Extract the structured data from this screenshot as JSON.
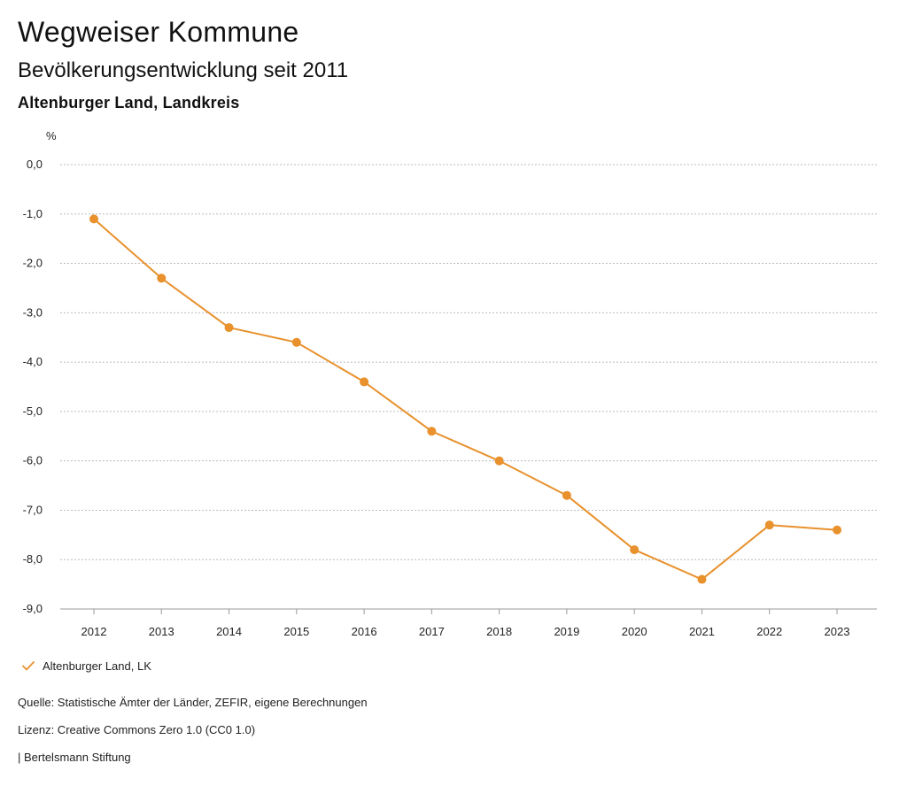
{
  "header": {
    "title": "Wegweiser Kommune",
    "subtitle": "Bevölkerungsentwicklung seit 2011",
    "region": "Altenburger Land, Landkreis"
  },
  "chart_data": {
    "type": "line",
    "title": "Bevölkerungsentwicklung seit 2011",
    "xlabel": "",
    "ylabel": "%",
    "ylim": [
      -9.0,
      0.0
    ],
    "yticks": [
      "0,0",
      "-1,0",
      "-2,0",
      "-3,0",
      "-4,0",
      "-5,0",
      "-6,0",
      "-7,0",
      "-8,0",
      "-9,0"
    ],
    "ytick_values": [
      0,
      -1,
      -2,
      -3,
      -4,
      -5,
      -6,
      -7,
      -8,
      -9
    ],
    "grid": true,
    "x": [
      "2012",
      "2013",
      "2014",
      "2015",
      "2016",
      "2017",
      "2018",
      "2019",
      "2020",
      "2021",
      "2022",
      "2023"
    ],
    "series": [
      {
        "name": "Altenburger Land, LK",
        "color": "#e8912d",
        "values": [
          -1.1,
          -2.3,
          -3.3,
          -3.6,
          -4.4,
          -5.4,
          -6.0,
          -6.7,
          -7.8,
          -8.4,
          -7.3,
          -7.4
        ]
      }
    ],
    "legend_position": "bottom-left"
  },
  "legend": {
    "label": "Altenburger Land, LK"
  },
  "footer": {
    "source": "Quelle: Statistische Ämter der Länder, ZEFIR, eigene Berechnungen",
    "license": "Lizenz: Creative Commons Zero 1.0 (CC0 1.0)",
    "brand": "| Bertelsmann Stiftung"
  },
  "colors": {
    "accent": "#e8912d",
    "grid": "#bbbbbb",
    "text": "#111111"
  }
}
